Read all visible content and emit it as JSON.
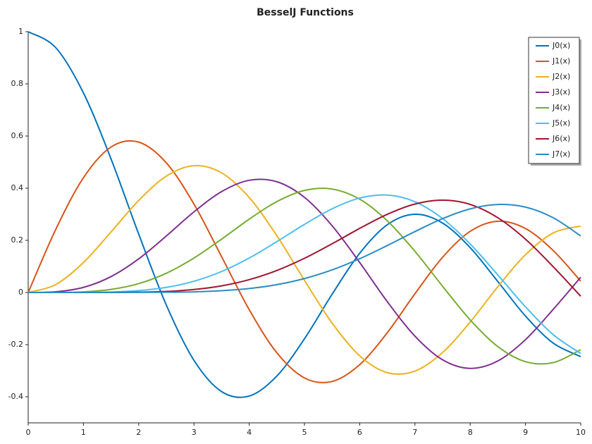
{
  "chart_data": {
    "type": "line",
    "title": "BesselJ Functions",
    "x": [
      0,
      0.5,
      1,
      1.5,
      2,
      2.5,
      3,
      3.5,
      4,
      4.5,
      5,
      5.5,
      6,
      6.5,
      7,
      7.5,
      8,
      8.5,
      9,
      9.5,
      10
    ],
    "xlim": [
      0,
      10
    ],
    "xticks": [
      0,
      1,
      2,
      3,
      4,
      5,
      6,
      7,
      8,
      9,
      10
    ],
    "ylim": [
      -0.5,
      1
    ],
    "yticks": [
      -0.4,
      -0.2,
      0,
      0.2,
      0.4,
      0.6,
      0.8,
      1
    ],
    "legend": "top-right",
    "series": [
      {
        "name": "J0(x)",
        "color": "#0072bd",
        "values": [
          1,
          0.9385,
          0.7652,
          0.5118,
          0.2239,
          -0.0484,
          -0.2601,
          -0.3801,
          -0.3971,
          -0.3205,
          -0.1776,
          -0.0068,
          0.1506,
          0.2601,
          0.3001,
          0.2663,
          0.1717,
          0.0419,
          -0.0903,
          -0.1939,
          -0.2459
        ]
      },
      {
        "name": "J1(x)",
        "color": "#d95319",
        "values": [
          0,
          0.2423,
          0.4401,
          0.5579,
          0.5767,
          0.4971,
          0.3391,
          0.1374,
          -0.066,
          -0.2311,
          -0.3276,
          -0.3414,
          -0.2767,
          -0.1538,
          -0.0047,
          0.1352,
          0.2346,
          0.2731,
          0.2453,
          0.1613,
          0.0435
        ]
      },
      {
        "name": "J2(x)",
        "color": "#edb120",
        "values": [
          0,
          0.0306,
          0.1149,
          0.2321,
          0.3528,
          0.4461,
          0.4861,
          0.4586,
          0.3641,
          0.2178,
          0.0466,
          -0.1173,
          -0.2429,
          -0.3074,
          -0.3014,
          -0.2303,
          -0.113,
          0.0223,
          0.1448,
          0.2279,
          0.2546
        ]
      },
      {
        "name": "J3(x)",
        "color": "#7e2f8e",
        "values": [
          0,
          0.0026,
          0.0196,
          0.061,
          0.1289,
          0.2166,
          0.3091,
          0.3868,
          0.4302,
          0.4247,
          0.3648,
          0.2561,
          0.1148,
          -0.0354,
          -0.1676,
          -0.2581,
          -0.2911,
          -0.2626,
          -0.1809,
          -0.0653,
          0.0584
        ]
      },
      {
        "name": "J4(x)",
        "color": "#77ac30",
        "values": [
          0,
          0.0002,
          0.0025,
          0.0118,
          0.034,
          0.0738,
          0.132,
          0.2044,
          0.2811,
          0.3485,
          0.3912,
          0.3967,
          0.3577,
          0.2747,
          0.1578,
          0.0238,
          -0.1053,
          -0.2077,
          -0.2654,
          -0.2691,
          -0.2196
        ]
      },
      {
        "name": "J5(x)",
        "color": "#4dbeee",
        "values": [
          0,
          0,
          0.0002,
          0.0018,
          0.007,
          0.0195,
          0.043,
          0.0804,
          0.1321,
          0.1949,
          0.2611,
          0.3209,
          0.3621,
          0.3735,
          0.3479,
          0.2835,
          0.1858,
          0.0671,
          -0.055,
          -0.1613,
          -0.2341
        ]
      },
      {
        "name": "J6(x)",
        "color": "#a2142f",
        "values": [
          0,
          0,
          0,
          0.0002,
          0.0012,
          0.004,
          0.0114,
          0.0254,
          0.0491,
          0.0843,
          0.131,
          0.1868,
          0.2458,
          0.2999,
          0.3392,
          0.3542,
          0.3376,
          0.2866,
          0.2043,
          0.0993,
          -0.0145
        ]
      },
      {
        "name": "J7(x)",
        "color": "#2b8cc4",
        "values": [
          0,
          0,
          0,
          0,
          0.0002,
          0.0009,
          0.0025,
          0.0067,
          0.0152,
          0.03,
          0.0534,
          0.0866,
          0.1295,
          0.1802,
          0.2336,
          0.2832,
          0.3206,
          0.3375,
          0.3274,
          0.2867,
          0.2167
        ]
      }
    ]
  }
}
